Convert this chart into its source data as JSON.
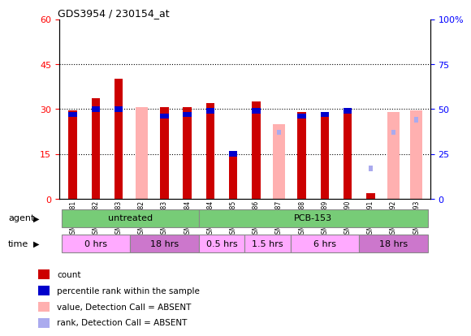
{
  "title": "GDS3954 / 230154_at",
  "samples": [
    "GSM149381",
    "GSM149382",
    "GSM149383",
    "GSM154182",
    "GSM154183",
    "GSM154184",
    "GSM149384",
    "GSM149385",
    "GSM149386",
    "GSM149387",
    "GSM149388",
    "GSM149389",
    "GSM149390",
    "GSM149391",
    "GSM149392",
    "GSM149393"
  ],
  "count_values": [
    29.5,
    33.5,
    40.0,
    null,
    30.5,
    30.5,
    32.0,
    14.5,
    32.5,
    null,
    29.0,
    29.0,
    29.0,
    2.0,
    null,
    null
  ],
  "percentile_values_pct": [
    47,
    50,
    50,
    null,
    46,
    47,
    49,
    25,
    49,
    null,
    46,
    47,
    49,
    null,
    null,
    null
  ],
  "absent_count_values": [
    null,
    null,
    null,
    30.5,
    null,
    null,
    null,
    null,
    null,
    25.0,
    null,
    null,
    null,
    null,
    29.0,
    29.5
  ],
  "absent_rank_values_pct": [
    null,
    null,
    null,
    null,
    null,
    null,
    null,
    null,
    null,
    37,
    null,
    null,
    null,
    17,
    37,
    44
  ],
  "count_color": "#cc0000",
  "percentile_color": "#0000cc",
  "absent_count_color": "#ffb0b0",
  "absent_rank_color": "#aaaaee",
  "ylim_left": [
    0,
    60
  ],
  "ylim_right": [
    0,
    100
  ],
  "yticks_left": [
    0,
    15,
    30,
    45,
    60
  ],
  "yticks_right": [
    0,
    25,
    50,
    75,
    100
  ],
  "background_color": "#ffffff"
}
